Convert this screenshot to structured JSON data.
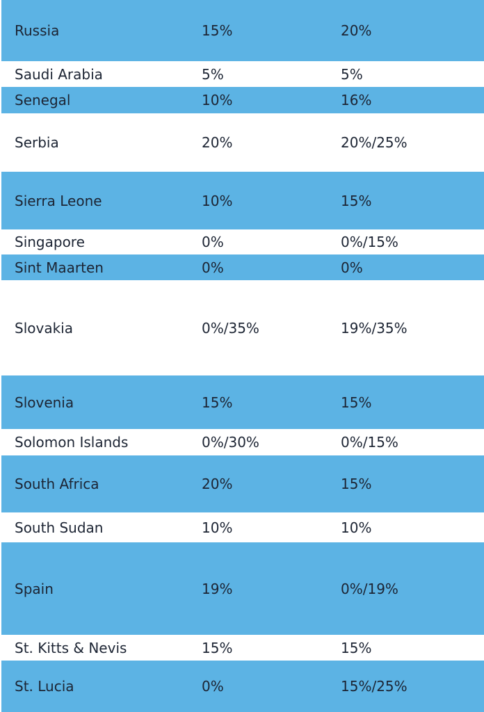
{
  "colors": {
    "row_blue": "#5cb3e4",
    "row_white": "#ffffff",
    "text": "#1c2433",
    "page_bg": "#ffffff"
  },
  "table": {
    "rows": [
      {
        "country": "Russia",
        "rate_1": "15%",
        "rate_2": "20%"
      },
      {
        "country": "Saudi Arabia",
        "rate_1": "5%",
        "rate_2": "5%"
      },
      {
        "country": "Senegal",
        "rate_1": "10%",
        "rate_2": "16%"
      },
      {
        "country": "Serbia",
        "rate_1": "20%",
        "rate_2": "20%/25%"
      },
      {
        "country": "Sierra Leone",
        "rate_1": "10%",
        "rate_2": "15%"
      },
      {
        "country": "Singapore",
        "rate_1": "0%",
        "rate_2": "0%/15%"
      },
      {
        "country": "Sint Maarten",
        "rate_1": "0%",
        "rate_2": "0%"
      },
      {
        "country": "Slovakia",
        "rate_1": "0%/35%",
        "rate_2": "19%/35%"
      },
      {
        "country": "Slovenia",
        "rate_1": "15%",
        "rate_2": "15%"
      },
      {
        "country": "Solomon Islands",
        "rate_1": "0%/30%",
        "rate_2": "0%/15%"
      },
      {
        "country": "South Africa",
        "rate_1": "20%",
        "rate_2": "15%"
      },
      {
        "country": "South Sudan",
        "rate_1": "10%",
        "rate_2": "10%"
      },
      {
        "country": "Spain",
        "rate_1": "19%",
        "rate_2": "0%/19%"
      },
      {
        "country": "St. Kitts & Nevis",
        "rate_1": "15%",
        "rate_2": "15%"
      },
      {
        "country": "St. Lucia",
        "rate_1": "0%",
        "rate_2": "15%/25%"
      }
    ]
  }
}
